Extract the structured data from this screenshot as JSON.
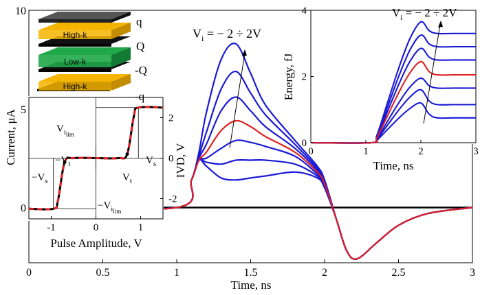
{
  "chart_data": [
    {
      "id": "main",
      "type": "line",
      "xlabel": "Time, ns",
      "ylabel": "Current, μA",
      "xlim": [
        0,
        3
      ],
      "ylim": [
        -2.8,
        10
      ],
      "xticks": [
        "0",
        "0.5",
        "1",
        "1.5",
        "2",
        "2.5",
        "3"
      ],
      "yticks": [
        "0",
        "5",
        "10"
      ],
      "annotation": {
        "prefix": "V",
        "subscript": "i",
        "text": " =  − 2 ÷ 2V"
      },
      "baseline_color": "#000000",
      "series_colors": [
        "#1919d6",
        "#1919d6",
        "#1919d6",
        "#e02020",
        "#1919d6",
        "#1919d6",
        "#1919d6"
      ],
      "note": "7 input-voltage curves; the middle (4th) curve is highlighted red",
      "peak_time_ns": [
        1.38,
        1.4,
        1.4,
        1.4,
        1.41,
        1.43,
        1.45
      ],
      "peak_current_uA": [
        8.3,
        6.9,
        5.6,
        4.4,
        3.4,
        2.4,
        1.5
      ],
      "x": [
        0,
        1,
        1.1,
        1.15,
        1.2,
        1.3,
        1.4,
        1.5,
        1.6,
        1.8,
        1.95,
        2.0,
        2.08,
        2.15,
        2.22,
        2.35,
        2.5,
        2.7,
        3.0
      ],
      "series": [
        {
          "values": [
            0,
            0,
            1.4,
            2.8,
            4.8,
            7.5,
            8.3,
            6.8,
            5.2,
            3.4,
            2.1,
            1.4,
            -0.6,
            -2.2,
            -2.6,
            -1.8,
            -0.9,
            -0.3,
            0
          ]
        },
        {
          "values": [
            0,
            0,
            1.4,
            2.6,
            3.8,
            6.0,
            6.9,
            5.8,
            4.7,
            3.2,
            2.0,
            1.3,
            -0.6,
            -2.2,
            -2.6,
            -1.8,
            -0.9,
            -0.3,
            0
          ]
        },
        {
          "values": [
            0,
            0,
            1.4,
            2.5,
            3.2,
            4.9,
            5.6,
            4.9,
            4.1,
            3.0,
            1.9,
            1.3,
            -0.6,
            -2.2,
            -2.6,
            -1.8,
            -0.9,
            -0.3,
            0
          ]
        },
        {
          "values": [
            0,
            0,
            1.4,
            2.4,
            2.8,
            3.9,
            4.4,
            4.1,
            3.6,
            2.8,
            1.8,
            1.2,
            -0.6,
            -2.2,
            -2.6,
            -1.8,
            -0.9,
            -0.3,
            0
          ]
        },
        {
          "values": [
            0,
            0,
            1.4,
            2.4,
            2.5,
            3.0,
            3.4,
            3.3,
            3.1,
            2.6,
            1.7,
            1.2,
            -0.6,
            -2.2,
            -2.6,
            -1.8,
            -0.9,
            -0.3,
            0
          ]
        },
        {
          "values": [
            0,
            0,
            1.4,
            2.4,
            2.3,
            2.2,
            2.4,
            2.4,
            2.4,
            2.2,
            1.6,
            1.1,
            -0.6,
            -2.2,
            -2.6,
            -1.8,
            -0.9,
            -0.3,
            0
          ]
        },
        {
          "values": [
            0,
            0,
            1.4,
            2.4,
            2.1,
            1.5,
            1.4,
            1.5,
            1.6,
            1.8,
            1.5,
            1.0,
            -0.6,
            -2.2,
            -2.6,
            -1.8,
            -0.9,
            -0.3,
            0
          ]
        }
      ]
    },
    {
      "id": "energy",
      "type": "line",
      "xlabel": "Time, ns",
      "ylabel": "Energy, fJ",
      "xlim": [
        0,
        3
      ],
      "ylim": [
        0,
        4
      ],
      "xticks": [
        "0",
        "1",
        "2",
        "3"
      ],
      "yticks": [
        "0",
        "2",
        "4"
      ],
      "annotation": {
        "prefix": "V",
        "subscript": "i",
        "text": " =  − 2 ÷ 2V"
      },
      "series_colors": [
        "#1919d6",
        "#1919d6",
        "#1919d6",
        "#e02020",
        "#1919d6",
        "#1919d6",
        "#1919d6"
      ],
      "x": [
        0,
        1.1,
        1.2,
        1.4,
        1.6,
        1.8,
        2.0,
        2.15,
        2.3,
        2.6,
        3.0
      ],
      "peak": [
        3.65,
        3.25,
        2.85,
        2.45,
        1.95,
        1.6,
        1.2
      ],
      "final": [
        3.3,
        2.9,
        2.5,
        2.05,
        1.65,
        1.15,
        0.75
      ]
    },
    {
      "id": "ivd",
      "type": "line",
      "xlabel": "Pulse Amplitude, V",
      "ylabel": "IVD, V",
      "xlim": [
        -1.5,
        1.5
      ],
      "ylim": [
        -3,
        3
      ],
      "xticks": [
        "-1",
        "0",
        "1"
      ],
      "yticks": [
        "2",
        "0",
        "-2"
      ],
      "labels": {
        "vilim_pos": "V",
        "vilim_pos_sub": "i",
        "vilim_pos_subsub": "lim",
        "vilim_neg": "−V",
        "vilim_neg_sub": "i",
        "vilim_neg_subsub": "lim",
        "vt_pos": "V",
        "vt_pos_sub": "t",
        "vt_neg": "−V",
        "vt_neg_sub": "t",
        "vs_pos": "V",
        "vs_pos_sub": "s",
        "vs_neg": "−V",
        "vs_neg_sub": "s"
      },
      "dashed_color": "#e02020",
      "solid_color": "#000000",
      "x": [
        -1.5,
        -0.95,
        -0.85,
        -0.7,
        -0.5,
        0,
        0.5,
        0.7,
        0.85,
        0.95,
        1.5
      ],
      "y": [
        -2.5,
        -2.5,
        -2.1,
        -0.2,
        0,
        0,
        0,
        0.2,
        2.1,
        2.5,
        2.5
      ]
    }
  ],
  "stack_labels": {
    "layer_high_k_top": "High-k",
    "layer_low_k": "Low-k",
    "layer_high_k_bottom": "High-k",
    "charge_q_top": "q",
    "charge_Q": "Q",
    "charge_neg_Q": "-Q",
    "charge_neg_q": "-q"
  },
  "colors": {
    "high_k": "#f5b400",
    "low_k": "#1ea848",
    "plate_top": "#555555",
    "plate": "#111111",
    "curve_blue": "#1919d6",
    "curve_red": "#e02020"
  }
}
